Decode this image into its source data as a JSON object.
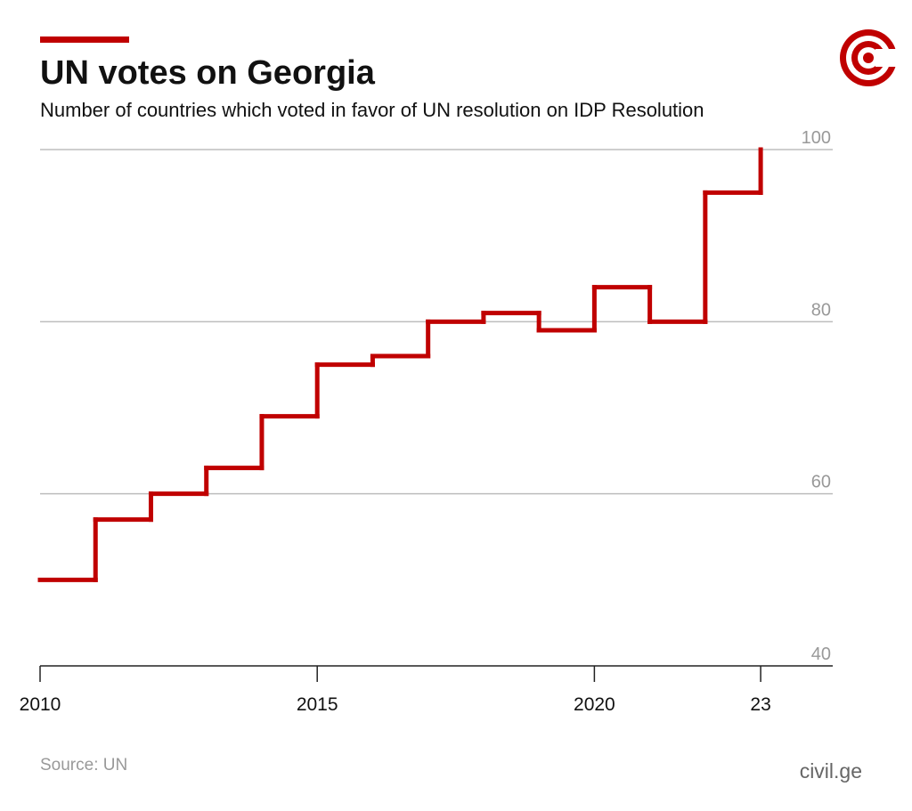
{
  "chart_data": {
    "type": "step",
    "title": "UN votes on Georgia",
    "subtitle": "Number of countries which voted in favor of UN resolution on IDP Resolution",
    "source": "Source: UN",
    "credit": "civil.ge",
    "x": [
      2010,
      2011,
      2012,
      2013,
      2014,
      2015,
      2016,
      2017,
      2018,
      2019,
      2020,
      2021,
      2022,
      2023
    ],
    "values": [
      50,
      57,
      60,
      63,
      69,
      75,
      76,
      80,
      81,
      79,
      84,
      80,
      95,
      100
    ],
    "color": "#c00000",
    "xlim": [
      2010,
      2024.3
    ],
    "xticks": [
      2010,
      2015,
      2020,
      {
        "value": 2023,
        "label": "23"
      }
    ],
    "ylim": [
      40,
      100
    ],
    "yticks": [
      40,
      60,
      80,
      100
    ],
    "grid": true
  }
}
